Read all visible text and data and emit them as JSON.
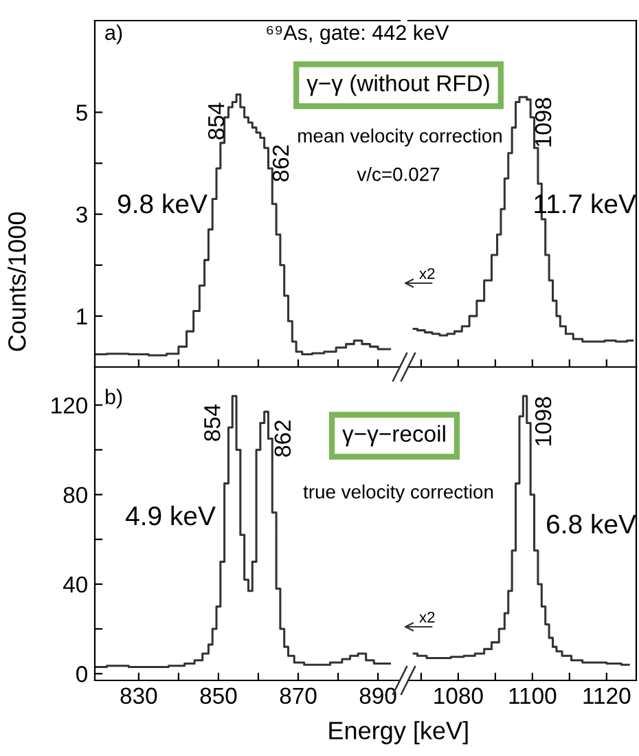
{
  "chart_data": [
    {
      "type": "step",
      "color": "#333333",
      "ylabel": "Counts/1000",
      "xlim": [
        819,
        895.5
      ],
      "ylim": [
        0,
        6.8
      ],
      "xticks": [
        830,
        {
          "value": 840,
          "label": null
        },
        850,
        {
          "value": 860,
          "label": null
        },
        870,
        {
          "value": 880,
          "label": null
        },
        890
      ],
      "yticks": [
        1,
        {
          "value": 2,
          "label": null
        },
        3,
        {
          "value": 4,
          "label": null
        },
        5
      ],
      "tick_labels": "y",
      "x": [
        819,
        825,
        830,
        835,
        839,
        841,
        843,
        844.5,
        846,
        847,
        848,
        849,
        850,
        851,
        852,
        853,
        854,
        855,
        856,
        857,
        858,
        859,
        860,
        861,
        862,
        863,
        864,
        865,
        866,
        867,
        868,
        869,
        870,
        872,
        875,
        878,
        881,
        883,
        885,
        887,
        889,
        891,
        893
      ],
      "values": [
        0.25,
        0.26,
        0.25,
        0.23,
        0.26,
        0.4,
        0.7,
        1.1,
        1.6,
        2.1,
        2.7,
        3.3,
        3.9,
        4.4,
        4.9,
        5.1,
        5.2,
        5.35,
        5.1,
        4.9,
        4.8,
        4.7,
        4.6,
        4.5,
        4.3,
        3.9,
        3.2,
        2.6,
        2.0,
        1.4,
        0.9,
        0.5,
        0.3,
        0.25,
        0.27,
        0.3,
        0.38,
        0.45,
        0.52,
        0.45,
        0.4,
        0.35,
        0.35
      ],
      "annotations": [
        "a)",
        "⁶⁹As, gate: 442 keV",
        "γ−γ (without RFD)",
        "mean velocity correction",
        "v/c=0.027",
        "9.8 keV",
        {
          "text": "854",
          "x": 855,
          "y": 5.35
        },
        {
          "text": "862",
          "x": 862,
          "y": 4.3
        }
      ]
    },
    {
      "type": "step",
      "color": "#333333",
      "xlim": [
        1066.5,
        1128
      ],
      "ylim": [
        0,
        6.8
      ],
      "xticks": [
        {
          "value": 1070,
          "label": null
        },
        1080,
        {
          "value": 1090,
          "label": null
        },
        1100,
        {
          "value": 1110,
          "label": null
        },
        1120
      ],
      "tick_labels": false,
      "x": [
        1068,
        1070,
        1072,
        1074,
        1076,
        1078,
        1080,
        1082,
        1084,
        1086,
        1088,
        1090,
        1091,
        1092,
        1093,
        1094,
        1095,
        1096,
        1097,
        1098,
        1099,
        1100,
        1101,
        1102,
        1103,
        1104,
        1105,
        1106,
        1107,
        1108,
        1110,
        1112,
        1115,
        1118,
        1121,
        1124,
        1127
      ],
      "values": [
        0.75,
        0.72,
        0.68,
        0.65,
        0.62,
        0.65,
        0.7,
        0.8,
        1.0,
        1.3,
        1.7,
        2.2,
        2.6,
        3.1,
        3.7,
        4.2,
        4.7,
        5.2,
        5.3,
        5.3,
        5.25,
        4.9,
        4.3,
        3.6,
        2.9,
        2.2,
        1.7,
        1.3,
        1.0,
        0.8,
        0.65,
        0.55,
        0.5,
        0.5,
        0.52,
        0.5,
        0.52
      ],
      "annotations": [
        "x2",
        "11.7 keV",
        {
          "text": "1098",
          "x": 1098,
          "y": 5.3
        }
      ]
    },
    {
      "type": "step",
      "color": "#333333",
      "xlabel": "Energy [keV]",
      "xlim": [
        819,
        895.5
      ],
      "ylim": [
        -3,
        137
      ],
      "xticks": [
        830,
        {
          "value": 840,
          "label": null
        },
        850,
        {
          "value": 860,
          "label": null
        },
        870,
        {
          "value": 880,
          "label": null
        },
        890
      ],
      "yticks": [
        0,
        {
          "value": 20,
          "label": null
        },
        40,
        {
          "value": 60,
          "label": null
        },
        80,
        {
          "value": 100,
          "label": null
        },
        120
      ],
      "x": [
        819,
        825,
        830,
        835,
        840,
        843,
        845,
        847,
        848,
        849,
        850,
        851,
        852,
        853,
        854,
        855,
        856,
        857,
        858,
        859,
        860,
        861,
        862,
        863,
        864,
        865,
        866,
        867,
        868,
        870,
        873,
        876,
        880,
        882,
        884,
        886,
        888,
        890,
        893
      ],
      "values": [
        3,
        3.5,
        3,
        3,
        3.5,
        4.5,
        6,
        9,
        13,
        20,
        30,
        50,
        85,
        110,
        124,
        100,
        62,
        42,
        37,
        50,
        100,
        112,
        117,
        105,
        72,
        38,
        20,
        12,
        8,
        5,
        4,
        4,
        5,
        6.5,
        8,
        9,
        6,
        4.5,
        4.5
      ],
      "annotations": [
        "b)",
        "γ−γ−recoil",
        "true velocity correction",
        "4.9 keV",
        {
          "text": "854",
          "x": 854,
          "y": 124
        },
        {
          "text": "862",
          "x": 862,
          "y": 117
        }
      ]
    },
    {
      "type": "step",
      "color": "#333333",
      "xlim": [
        1066.5,
        1128
      ],
      "ylim": [
        -3,
        137
      ],
      "xticks": [
        {
          "value": 1070,
          "label": null
        },
        1080,
        {
          "value": 1090,
          "label": null
        },
        1100,
        {
          "value": 1110,
          "label": null
        },
        1120
      ],
      "tick_labels": "x",
      "x": [
        1068,
        1070,
        1073,
        1076,
        1080,
        1083,
        1086,
        1088,
        1090,
        1092,
        1093,
        1094,
        1095,
        1096,
        1097,
        1098,
        1099,
        1100,
        1101,
        1102,
        1103,
        1104,
        1105,
        1106,
        1107,
        1109,
        1112,
        1115,
        1118,
        1122,
        1126
      ],
      "values": [
        9,
        8,
        7,
        7,
        7.5,
        8,
        9,
        11,
        14,
        20,
        27,
        37,
        55,
        85,
        115,
        124,
        112,
        80,
        55,
        40,
        30,
        22,
        16,
        12,
        10,
        8,
        6,
        5,
        5,
        4.5,
        4
      ],
      "annotations": [
        "x2",
        "6.8 keV",
        {
          "text": "1098",
          "x": 1098,
          "y": 124
        }
      ]
    }
  ]
}
